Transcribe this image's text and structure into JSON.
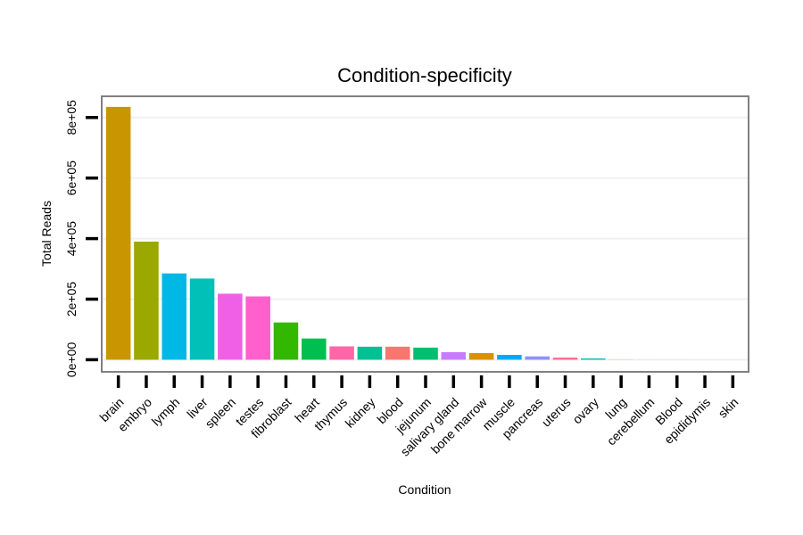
{
  "chart_data": {
    "type": "bar",
    "title": "Condition-specificity",
    "xlabel": "Condition",
    "ylabel": "Total Reads",
    "ylim": [
      -40000,
      870000
    ],
    "yticks": [
      0,
      200000,
      400000,
      600000,
      800000
    ],
    "ytick_labels": [
      "0e+00",
      "2e+05",
      "4e+05",
      "6e+05",
      "8e+05"
    ],
    "grid": true,
    "categories": [
      "brain",
      "embryo",
      "lymph",
      "liver",
      "spleen",
      "testes",
      "fibroblast",
      "heart",
      "thymus",
      "kidney",
      "blood",
      "jejunum",
      "salivary gland",
      "bone marrow",
      "muscle",
      "pancreas",
      "uterus",
      "ovary",
      "lung",
      "cerebellum",
      "Blood",
      "epididymis",
      "skin"
    ],
    "values": [
      835000,
      390000,
      285000,
      268000,
      218000,
      209000,
      123000,
      70000,
      44000,
      43000,
      43000,
      40000,
      25000,
      22000,
      16000,
      11000,
      7000,
      4000,
      400,
      200,
      100,
      100,
      100
    ],
    "colors": [
      "#c99500",
      "#9aa800",
      "#00b8e6",
      "#00c0b8",
      "#f060e6",
      "#ff60cc",
      "#33b800",
      "#00bf50",
      "#ff66a8",
      "#00c094",
      "#f8766d",
      "#00be70",
      "#c77cff",
      "#d99100",
      "#00a8ff",
      "#8f91ff",
      "#ff6c91",
      "#00b4c4",
      "#7cae00",
      "#e76bf3",
      "#00bfc4",
      "#a3a500",
      "#619cff"
    ]
  }
}
